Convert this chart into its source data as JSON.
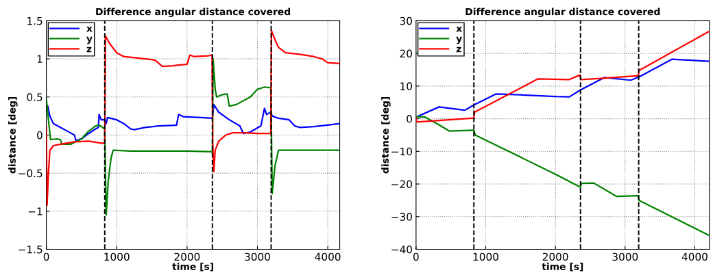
{
  "chart_data": [
    {
      "type": "line",
      "title": "Difference angular distance covered",
      "xlabel": "time [s]",
      "ylabel": "distance [deg]",
      "xlim": [
        0,
        4170
      ],
      "xticks": [
        0,
        1000,
        2000,
        3000,
        4000
      ],
      "ylim": [
        -1.5,
        1.5
      ],
      "yticks": [
        {
          "value": -1.5,
          "label": "−1.5"
        },
        {
          "value": -1,
          "label": "−1"
        },
        {
          "value": -0.5,
          "label": "−0.5"
        },
        0,
        0.5,
        1,
        1.5
      ],
      "grid": true,
      "legend": "top left",
      "line_style": "solid",
      "marker": "none",
      "ref_lines": [
        {
          "axis": "x",
          "value": 830,
          "color": "#000000",
          "line_style": "dashed"
        },
        {
          "axis": "x",
          "value": 2360,
          "color": "#000000",
          "line_style": "dashed"
        },
        {
          "axis": "x",
          "value": 3195,
          "color": "#000000",
          "line_style": "dashed"
        }
      ],
      "series": [
        {
          "name": "x",
          "color": "#0000ff",
          "x": [
            20,
            50,
            100,
            200,
            300,
            400,
            420,
            500,
            600,
            700,
            740,
            750,
            780,
            830,
            850,
            870,
            1000,
            1100,
            1200,
            1250,
            1400,
            1600,
            1850,
            1880,
            1950,
            2200,
            2360,
            2380,
            2450,
            2600,
            2750,
            2800,
            2900,
            3050,
            3100,
            3130,
            3190,
            3210,
            3300,
            3450,
            3530,
            3600,
            3800,
            4000,
            4170
          ],
          "values": [
            0.38,
            0.25,
            0.15,
            0.1,
            0.05,
            0.0,
            -0.07,
            -0.05,
            0.02,
            0.08,
            0.1,
            0.27,
            0.2,
            0.2,
            0.15,
            0.23,
            0.2,
            0.15,
            0.08,
            0.07,
            0.1,
            0.12,
            0.13,
            0.27,
            0.24,
            0.23,
            0.22,
            0.4,
            0.3,
            0.2,
            0.12,
            0.02,
            0.04,
            0.12,
            0.35,
            0.27,
            0.3,
            0.25,
            0.22,
            0.2,
            0.12,
            0.1,
            0.11,
            0.13,
            0.15
          ]
        },
        {
          "name": "y",
          "color": "#008000",
          "x": [
            0,
            30,
            60,
            150,
            200,
            220,
            350,
            500,
            600,
            700,
            750,
            800,
            830,
            850,
            880,
            920,
            950,
            1200,
            1600,
            2000,
            2360,
            2370,
            2400,
            2420,
            2500,
            2570,
            2600,
            2700,
            2900,
            3000,
            3100,
            3190,
            3200,
            3210,
            3250,
            3300,
            3400,
            4170
          ],
          "values": [
            0.47,
            0.2,
            -0.06,
            -0.05,
            -0.06,
            -0.12,
            -0.12,
            -0.05,
            0.05,
            0.12,
            0.13,
            0.1,
            0.08,
            -1.05,
            -0.6,
            -0.3,
            -0.2,
            -0.21,
            -0.21,
            -0.21,
            -0.22,
            1.0,
            0.6,
            0.5,
            0.53,
            0.54,
            0.38,
            0.4,
            0.5,
            0.6,
            0.63,
            0.62,
            0.0,
            -0.77,
            -0.4,
            -0.2,
            -0.2,
            -0.2
          ]
        },
        {
          "name": "z",
          "color": "#ff0000",
          "x": [
            0,
            10,
            30,
            50,
            100,
            200,
            400,
            600,
            800,
            830,
            840,
            900,
            1000,
            1100,
            1300,
            1500,
            1550,
            1650,
            1800,
            2000,
            2040,
            2100,
            2300,
            2355,
            2365,
            2380,
            2400,
            2450,
            2550,
            2650,
            2800,
            3000,
            3190,
            3200,
            3250,
            3300,
            3400,
            3600,
            3800,
            3920,
            4000,
            4170
          ],
          "values": [
            0.1,
            -0.92,
            -0.5,
            -0.2,
            -0.14,
            -0.12,
            -0.09,
            -0.08,
            -0.11,
            -0.1,
            1.3,
            1.2,
            1.08,
            1.03,
            1.01,
            0.99,
            0.98,
            0.9,
            0.91,
            0.93,
            1.05,
            1.03,
            1.04,
            1.05,
            -0.1,
            -0.48,
            -0.2,
            -0.08,
            0.0,
            0.03,
            0.03,
            0.02,
            0.02,
            1.37,
            1.25,
            1.15,
            1.08,
            1.06,
            1.03,
            1.0,
            0.95,
            0.94
          ]
        }
      ]
    },
    {
      "type": "line",
      "title": "Difference angular distance covered",
      "xlabel": "time [s]",
      "ylabel": "distance [deg]",
      "xlim": [
        0,
        4210
      ],
      "xticks": [
        0,
        1000,
        2000,
        3000,
        4000
      ],
      "ylim": [
        -40,
        30
      ],
      "yticks": [
        {
          "value": -40,
          "label": "−40"
        },
        {
          "value": -30,
          "label": "−30"
        },
        {
          "value": -20,
          "label": "−20"
        },
        {
          "value": -10,
          "label": "−10"
        },
        0,
        10,
        20,
        30
      ],
      "grid": true,
      "legend": "top left",
      "line_style": "solid",
      "marker": "none",
      "ref_lines": [
        {
          "axis": "x",
          "value": 830,
          "color": "#000000",
          "line_style": "dashed"
        },
        {
          "axis": "x",
          "value": 2360,
          "color": "#000000",
          "line_style": "dashed"
        },
        {
          "axis": "x",
          "value": 3195,
          "color": "#000000",
          "line_style": "dashed"
        }
      ],
      "series": [
        {
          "name": "x",
          "color": "#0000ff",
          "x": [
            0,
            330,
            700,
            830,
            1150,
            1500,
            2000,
            2200,
            2360,
            2700,
            3080,
            3200,
            3670,
            4210
          ],
          "values": [
            0.5,
            3.6,
            2.6,
            4.2,
            7.6,
            7.3,
            6.8,
            6.7,
            8.8,
            12.6,
            11.8,
            12.8,
            18.2,
            17.6
          ]
        },
        {
          "name": "y",
          "color": "#008000",
          "x": [
            0,
            130,
            300,
            480,
            830,
            850,
            2000,
            2360,
            2370,
            2550,
            2880,
            3190,
            3200,
            4210
          ],
          "values": [
            0.6,
            0.5,
            -1.5,
            -3.8,
            -3.5,
            -5,
            -17,
            -21,
            -19.8,
            -19.7,
            -23.8,
            -23.6,
            -25,
            -35.8
          ]
        },
        {
          "name": "z",
          "color": "#ff0000",
          "x": [
            0,
            10,
            830,
            840,
            1750,
            2200,
            2350,
            2365,
            2700,
            3190,
            3200,
            4210
          ],
          "values": [
            0,
            -1.0,
            0.2,
            2.0,
            12.2,
            12.0,
            13.4,
            12,
            12.4,
            13.2,
            14.8,
            26.8
          ]
        }
      ]
    }
  ]
}
